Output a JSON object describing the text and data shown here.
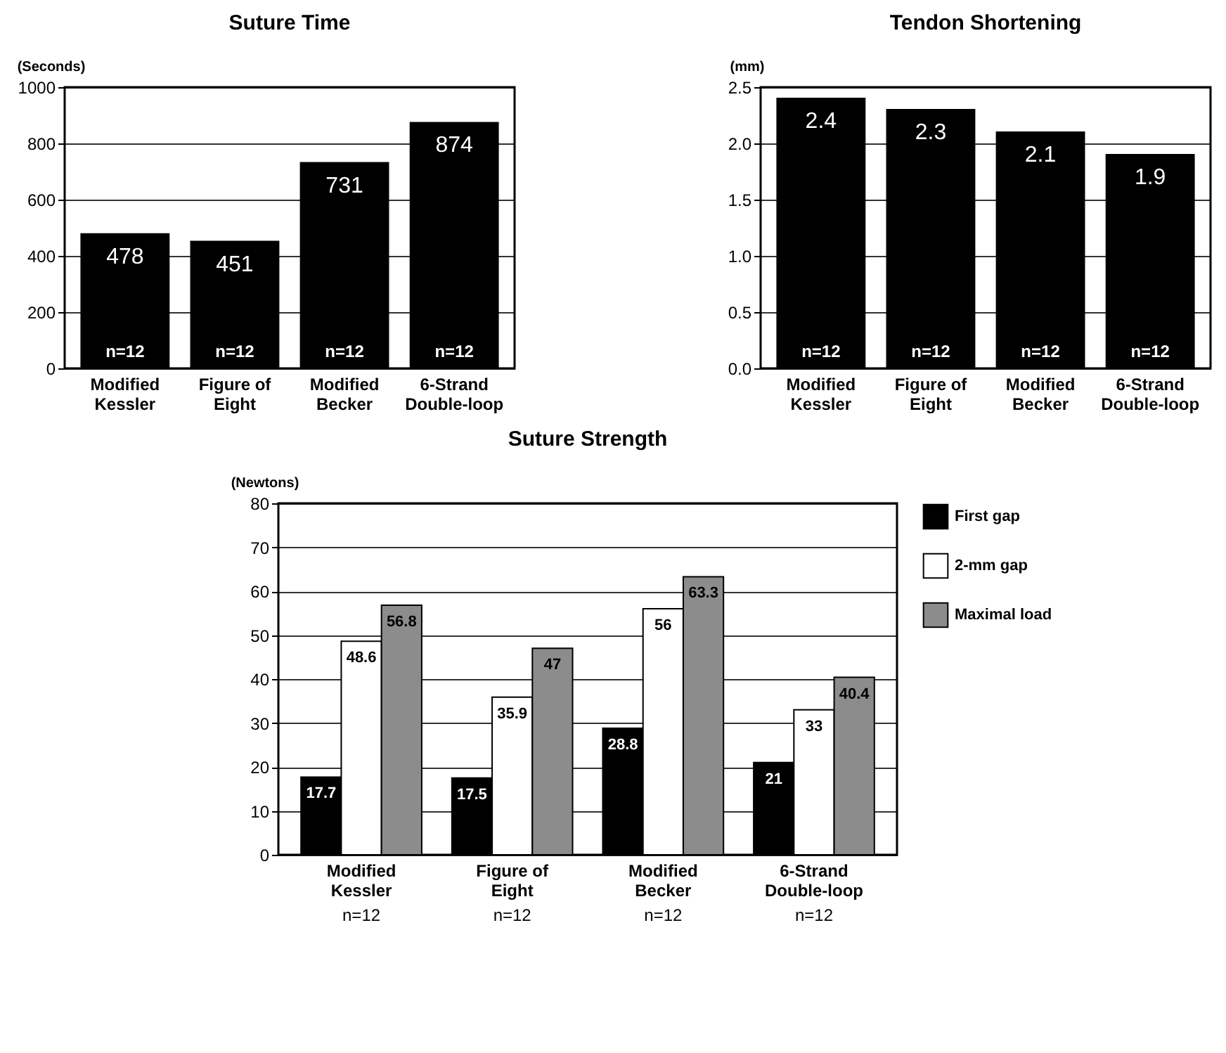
{
  "chart_data": [
    {
      "type": "bar",
      "title": "Suture Time",
      "ylabel": "(Seconds)",
      "categories": [
        "Modified\nKessler",
        "Figure of\nEight",
        "Modified\nBecker",
        "6-Strand\nDouble-loop"
      ],
      "values": [
        478,
        451,
        731,
        874
      ],
      "color": "#000000",
      "ylim": [
        0,
        1000
      ],
      "yticks": [
        0,
        200,
        400,
        600,
        800,
        1000
      ],
      "grid": "y",
      "data_labels": true,
      "annotations": [
        {
          "text": "n=12",
          "x": "Modified\nKessler",
          "y": 0
        },
        {
          "text": "n=12",
          "x": "Figure of\nEight",
          "y": 0
        },
        {
          "text": "n=12",
          "x": "Modified\nBecker",
          "y": 0
        },
        {
          "text": "n=12",
          "x": "6-Strand\nDouble-loop",
          "y": 0
        }
      ]
    },
    {
      "type": "bar",
      "title": "Tendon Shortening",
      "ylabel": "(mm)",
      "categories": [
        "Modified\nKessler",
        "Figure of\nEight",
        "Modified\nBecker",
        "6-Strand\nDouble-loop"
      ],
      "values": [
        2.4,
        2.3,
        2.1,
        1.9
      ],
      "color": "#000000",
      "ylim": [
        0,
        2.5
      ],
      "yticks": [
        {
          "value": 0,
          "label": "0.0"
        },
        {
          "value": 0.5,
          "label": "0.5"
        },
        {
          "value": 1,
          "label": "1.0"
        },
        {
          "value": 1.5,
          "label": "1.5"
        },
        {
          "value": 2,
          "label": "2.0"
        },
        {
          "value": 2.5,
          "label": "2.5"
        }
      ],
      "grid": "y",
      "data_labels": true,
      "annotations": [
        {
          "text": "n=12",
          "x": "Modified\nKessler",
          "y": 0
        },
        {
          "text": "n=12",
          "x": "Figure of\nEight",
          "y": 0
        },
        {
          "text": "n=12",
          "x": "Modified\nBecker",
          "y": 0
        },
        {
          "text": "n=12",
          "x": "6-Strand\nDouble-loop",
          "y": 0
        }
      ]
    },
    {
      "type": "bar",
      "title": "Suture Strength",
      "ylabel": "(Newtons)",
      "categories": [
        "Modified\nKessler",
        "Figure of\nEight",
        "Modified\nBecker",
        "6-Strand\nDouble-loop"
      ],
      "series": [
        {
          "name": "First gap",
          "color": "#000000",
          "values": [
            17.7,
            17.5,
            28.8,
            21
          ]
        },
        {
          "name": "2-mm gap",
          "color": "#ffffff",
          "values": [
            48.6,
            35.9,
            56,
            33
          ]
        },
        {
          "name": "Maximal load",
          "color": "#8c8c8c",
          "values": [
            56.8,
            47,
            63.3,
            40.4
          ]
        }
      ],
      "ylim": [
        0,
        80
      ],
      "yticks": [
        0,
        10,
        20,
        30,
        40,
        50,
        60,
        70,
        80
      ],
      "grid": "y",
      "data_labels": true,
      "legend": "right",
      "annotations": [
        "n=12",
        "n=12",
        "n=12",
        "n=12"
      ]
    }
  ]
}
